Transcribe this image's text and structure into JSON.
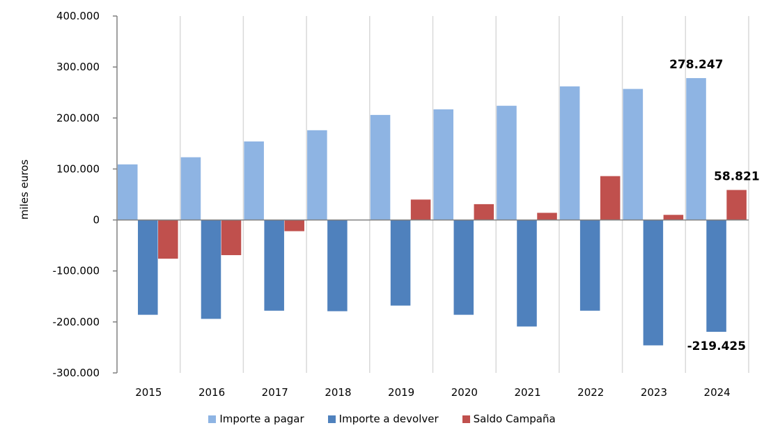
{
  "chart_data": {
    "type": "bar",
    "title": "",
    "xlabel": "",
    "ylabel": "miles euros",
    "ylim": [
      -300000,
      400000
    ],
    "yticks": [
      400000,
      300000,
      200000,
      100000,
      0,
      -100000,
      -200000,
      -300000
    ],
    "ytick_labels": [
      "400.000",
      "300.000",
      "200.000",
      "100.000",
      "0",
      "-100.000",
      "-200.000",
      "-300.000"
    ],
    "categories": [
      "2015",
      "2016",
      "2017",
      "2018",
      "2019",
      "2020",
      "2021",
      "2022",
      "2023",
      "2024"
    ],
    "series": [
      {
        "name": "Importe a pagar",
        "color": "#8EB4E3",
        "values": [
          109000,
          123000,
          154000,
          176000,
          206000,
          217000,
          224000,
          262000,
          257000,
          278247
        ]
      },
      {
        "name": "Importe a devolver",
        "color": "#4F81BD",
        "values": [
          -186000,
          -194000,
          -178000,
          -179000,
          -168000,
          -186000,
          -209000,
          -178000,
          -246000,
          -219425
        ]
      },
      {
        "name": "Saldo Campaña",
        "color": "#C0504D",
        "values": [
          -76000,
          -69000,
          -22000,
          0,
          40000,
          31000,
          14000,
          86000,
          10000,
          58821
        ]
      }
    ],
    "data_labels": [
      {
        "series": 0,
        "category": "2024",
        "text": "278.247"
      },
      {
        "series": 1,
        "category": "2024",
        "text": "-219.425"
      },
      {
        "series": 2,
        "category": "2024",
        "text": "58.821"
      }
    ],
    "grid": "vertical category separators",
    "legend_position": "bottom"
  }
}
